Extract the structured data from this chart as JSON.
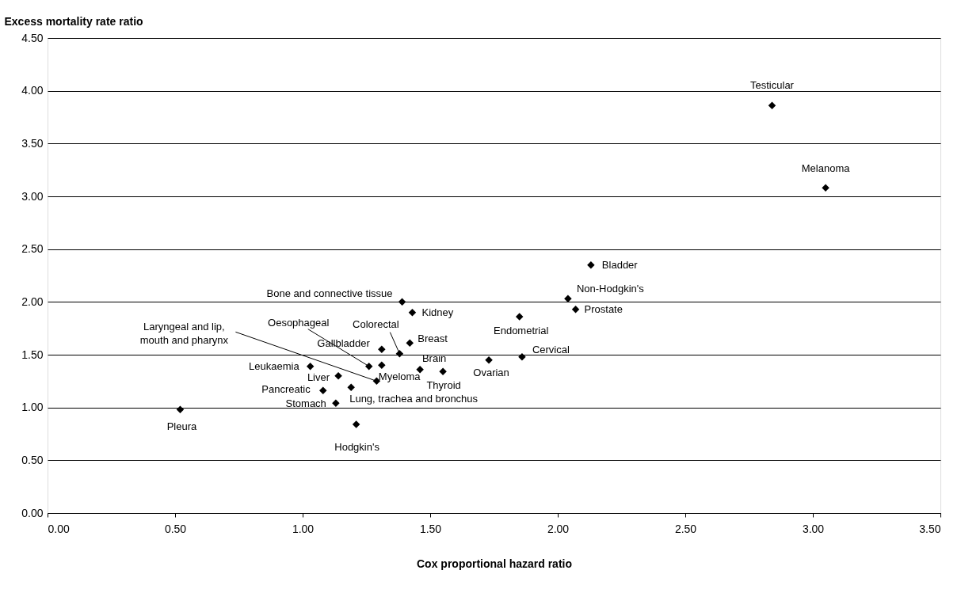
{
  "chart_data": {
    "type": "scatter",
    "xlabel": "Cox proportional hazard ratio",
    "ylabel": "Excess mortality rate ratio",
    "series": [
      {
        "color": "#000000",
        "x": [
          2.84,
          3.05,
          2.13,
          2.04,
          2.07,
          1.85,
          1.86,
          1.73,
          1.39,
          1.43,
          1.42,
          1.38,
          1.31,
          1.26,
          1.29,
          1.31,
          1.46,
          1.55,
          1.03,
          1.14,
          1.08,
          1.19,
          1.13,
          0.52,
          1.21
        ],
        "values": [
          3.86,
          3.08,
          2.35,
          2.03,
          1.93,
          1.86,
          1.48,
          1.45,
          2.0,
          1.9,
          1.61,
          1.51,
          1.55,
          1.39,
          1.25,
          1.4,
          1.36,
          1.34,
          1.39,
          1.3,
          1.16,
          1.19,
          1.04,
          0.98,
          0.84
        ]
      }
    ],
    "annotations": [
      {
        "text": "Testicular",
        "x": 2.84,
        "y": 3.86
      },
      {
        "text": "Melanoma",
        "x": 3.05,
        "y": 3.08
      },
      {
        "text": "Bladder",
        "x": 2.13,
        "y": 2.35
      },
      {
        "text": "Non-Hodgkin's",
        "x": 2.04,
        "y": 2.03
      },
      {
        "text": "Prostate",
        "x": 2.07,
        "y": 1.93
      },
      {
        "text": "Endometrial",
        "x": 1.85,
        "y": 1.86
      },
      {
        "text": "Cervical",
        "x": 1.86,
        "y": 1.48
      },
      {
        "text": "Ovarian",
        "x": 1.73,
        "y": 1.45
      },
      {
        "text": "Bone and connective tissue",
        "x": 1.39,
        "y": 2.0
      },
      {
        "text": "Kidney",
        "x": 1.43,
        "y": 1.9
      },
      {
        "text": "Breast",
        "x": 1.42,
        "y": 1.61
      },
      {
        "text": "Colorectal",
        "x": 1.38,
        "y": 1.51
      },
      {
        "text": "Gallbladder",
        "x": 1.31,
        "y": 1.55
      },
      {
        "text": "Oesophageal",
        "x": 1.26,
        "y": 1.39
      },
      {
        "text": "Laryngeal and lip,\nmouth and pharynx",
        "x": 1.29,
        "y": 1.25
      },
      {
        "text": "Myeloma",
        "x": 1.31,
        "y": 1.4
      },
      {
        "text": "Brain",
        "x": 1.46,
        "y": 1.36
      },
      {
        "text": "Thyroid",
        "x": 1.55,
        "y": 1.34
      },
      {
        "text": "Leukaemia",
        "x": 1.03,
        "y": 1.39
      },
      {
        "text": "Liver",
        "x": 1.14,
        "y": 1.3
      },
      {
        "text": "Pancreatic",
        "x": 1.08,
        "y": 1.16
      },
      {
        "text": "Lung, trachea and bronchus",
        "x": 1.19,
        "y": 1.19
      },
      {
        "text": "Stomach",
        "x": 1.13,
        "y": 1.04
      },
      {
        "text": "Pleura",
        "x": 0.52,
        "y": 0.98
      },
      {
        "text": "Hodgkin's",
        "x": 1.21,
        "y": 0.84
      }
    ],
    "xlim": [
      0,
      3.5
    ],
    "xticks": [
      {
        "value": 0,
        "label": "0.00"
      },
      {
        "value": 0.5,
        "label": "0.50"
      },
      {
        "value": 1,
        "label": "1.00"
      },
      {
        "value": 1.5,
        "label": "1.50"
      },
      {
        "value": 2,
        "label": "2.00"
      },
      {
        "value": 2.5,
        "label": "2.50"
      },
      {
        "value": 3,
        "label": "3.00"
      },
      {
        "value": 3.5,
        "label": "3.50"
      }
    ],
    "ylim": [
      0,
      4.5
    ],
    "yticks": [
      {
        "value": 0,
        "label": "0.00"
      },
      {
        "value": 0.5,
        "label": "0.50"
      },
      {
        "value": 1,
        "label": "1.00"
      },
      {
        "value": 1.5,
        "label": "1.50"
      },
      {
        "value": 2,
        "label": "2.00"
      },
      {
        "value": 2.5,
        "label": "2.50"
      },
      {
        "value": 3,
        "label": "3.00"
      },
      {
        "value": 3.5,
        "label": "3.50"
      },
      {
        "value": 4,
        "label": "4.00"
      },
      {
        "value": 4.5,
        "label": "4.50"
      }
    ],
    "grid": "y",
    "marker": "diamond"
  }
}
